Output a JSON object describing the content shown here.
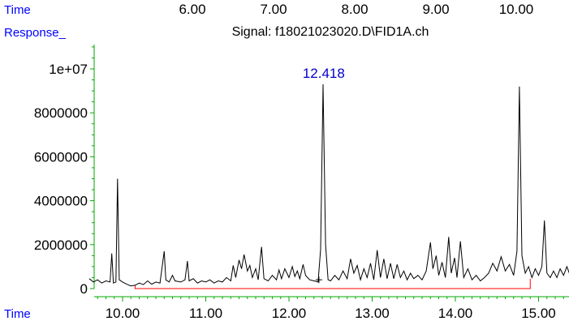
{
  "header": {
    "time_label": "Time",
    "response_label": "Response_",
    "signal_title": "Signal: f18021023020.D\\FID1A.ch"
  },
  "top_axis": {
    "ticks": [
      "6.00",
      "7.00",
      "8.00",
      "9.00",
      "10.00"
    ]
  },
  "footer": {
    "time_label": "Time"
  },
  "colors": {
    "label_blue": "#0000ff",
    "axis": "#00aa00",
    "signal": "#000000",
    "baseline": "#ff0000",
    "peak_label": "#0000cc"
  },
  "chart_data": {
    "type": "line",
    "title": "Signal: f18021023020.D\\FID1A.ch",
    "xlabel": "Time",
    "ylabel": "Response_",
    "xlim": [
      9.6,
      15.4
    ],
    "ylim": [
      0,
      11000000
    ],
    "x_ticks": [
      "10.00",
      "11.00",
      "12.00",
      "13.00",
      "14.00",
      "15.00"
    ],
    "y_ticks": [
      "0",
      "2000000",
      "4000000",
      "6000000",
      "8000000",
      "1e+07"
    ],
    "peak_label": {
      "x": 12.418,
      "text": "12.418"
    },
    "baseline": {
      "x_start": 10.15,
      "x_end": 14.9,
      "y": 0
    },
    "series": [
      {
        "values": [
          [
            9.6,
            450000
          ],
          [
            9.65,
            300000
          ],
          [
            9.7,
            400000
          ],
          [
            9.75,
            250000
          ],
          [
            9.8,
            350000
          ],
          [
            9.85,
            300000
          ],
          [
            9.87,
            1600000
          ],
          [
            9.89,
            250000
          ],
          [
            9.92,
            300000
          ],
          [
            9.94,
            5000000
          ],
          [
            9.96,
            400000
          ],
          [
            10.0,
            300000
          ],
          [
            10.05,
            200000
          ],
          [
            10.1,
            120000
          ],
          [
            10.15,
            150000
          ],
          [
            10.2,
            250000
          ],
          [
            10.25,
            180000
          ],
          [
            10.3,
            350000
          ],
          [
            10.35,
            200000
          ],
          [
            10.4,
            300000
          ],
          [
            10.45,
            250000
          ],
          [
            10.5,
            1700000
          ],
          [
            10.52,
            400000
          ],
          [
            10.56,
            300000
          ],
          [
            10.6,
            600000
          ],
          [
            10.63,
            350000
          ],
          [
            10.7,
            300000
          ],
          [
            10.75,
            400000
          ],
          [
            10.78,
            1250000
          ],
          [
            10.8,
            350000
          ],
          [
            10.85,
            450000
          ],
          [
            10.9,
            250000
          ],
          [
            10.95,
            350000
          ],
          [
            11.0,
            300000
          ],
          [
            11.05,
            400000
          ],
          [
            11.1,
            250000
          ],
          [
            11.15,
            350000
          ],
          [
            11.2,
            300000
          ],
          [
            11.25,
            500000
          ],
          [
            11.3,
            350000
          ],
          [
            11.33,
            1050000
          ],
          [
            11.36,
            500000
          ],
          [
            11.4,
            1300000
          ],
          [
            11.43,
            900000
          ],
          [
            11.46,
            1550000
          ],
          [
            11.5,
            800000
          ],
          [
            11.53,
            1050000
          ],
          [
            11.56,
            500000
          ],
          [
            11.6,
            900000
          ],
          [
            11.63,
            400000
          ],
          [
            11.67,
            1900000
          ],
          [
            11.7,
            450000
          ],
          [
            11.75,
            350000
          ],
          [
            11.8,
            600000
          ],
          [
            11.85,
            400000
          ],
          [
            11.88,
            850000
          ],
          [
            11.91,
            450000
          ],
          [
            11.95,
            900000
          ],
          [
            12.0,
            500000
          ],
          [
            12.04,
            1000000
          ],
          [
            12.07,
            550000
          ],
          [
            12.1,
            800000
          ],
          [
            12.13,
            450000
          ],
          [
            12.17,
            1100000
          ],
          [
            12.2,
            600000
          ],
          [
            12.25,
            400000
          ],
          [
            12.3,
            350000
          ],
          [
            12.35,
            300000
          ],
          [
            12.38,
            1800000
          ],
          [
            12.41,
            9300000
          ],
          [
            12.44,
            2000000
          ],
          [
            12.47,
            400000
          ],
          [
            12.5,
            350000
          ],
          [
            12.55,
            600000
          ],
          [
            12.6,
            400000
          ],
          [
            12.65,
            800000
          ],
          [
            12.7,
            450000
          ],
          [
            12.74,
            1350000
          ],
          [
            12.78,
            700000
          ],
          [
            12.82,
            1050000
          ],
          [
            12.86,
            400000
          ],
          [
            12.9,
            900000
          ],
          [
            12.94,
            500000
          ],
          [
            12.98,
            1150000
          ],
          [
            13.02,
            400000
          ],
          [
            13.06,
            1750000
          ],
          [
            13.1,
            500000
          ],
          [
            13.14,
            1350000
          ],
          [
            13.18,
            450000
          ],
          [
            13.22,
            1150000
          ],
          [
            13.26,
            450000
          ],
          [
            13.3,
            1100000
          ],
          [
            13.34,
            500000
          ],
          [
            13.38,
            800000
          ],
          [
            13.42,
            400000
          ],
          [
            13.46,
            700000
          ],
          [
            13.5,
            450000
          ],
          [
            13.55,
            600000
          ],
          [
            13.6,
            400000
          ],
          [
            13.65,
            800000
          ],
          [
            13.7,
            2100000
          ],
          [
            13.73,
            900000
          ],
          [
            13.77,
            1500000
          ],
          [
            13.8,
            600000
          ],
          [
            13.84,
            1200000
          ],
          [
            13.88,
            500000
          ],
          [
            13.92,
            2350000
          ],
          [
            13.95,
            700000
          ],
          [
            13.99,
            1400000
          ],
          [
            14.02,
            500000
          ],
          [
            14.06,
            2150000
          ],
          [
            14.1,
            500000
          ],
          [
            14.15,
            900000
          ],
          [
            14.2,
            400000
          ],
          [
            14.25,
            600000
          ],
          [
            14.3,
            350000
          ],
          [
            14.35,
            500000
          ],
          [
            14.4,
            700000
          ],
          [
            14.45,
            1150000
          ],
          [
            14.5,
            800000
          ],
          [
            14.55,
            1450000
          ],
          [
            14.6,
            800000
          ],
          [
            14.65,
            1100000
          ],
          [
            14.7,
            600000
          ],
          [
            14.74,
            1700000
          ],
          [
            14.77,
            9200000
          ],
          [
            14.8,
            1500000
          ],
          [
            14.84,
            700000
          ],
          [
            14.88,
            1000000
          ],
          [
            14.92,
            500000
          ],
          [
            14.96,
            900000
          ],
          [
            15.0,
            600000
          ],
          [
            15.04,
            1000000
          ],
          [
            15.07,
            3100000
          ],
          [
            15.1,
            700000
          ],
          [
            15.14,
            500000
          ],
          [
            15.18,
            800000
          ],
          [
            15.22,
            500000
          ],
          [
            15.26,
            900000
          ],
          [
            15.3,
            600000
          ],
          [
            15.34,
            1000000
          ],
          [
            15.37,
            700000
          ],
          [
            15.4,
            750000
          ]
        ]
      }
    ]
  }
}
